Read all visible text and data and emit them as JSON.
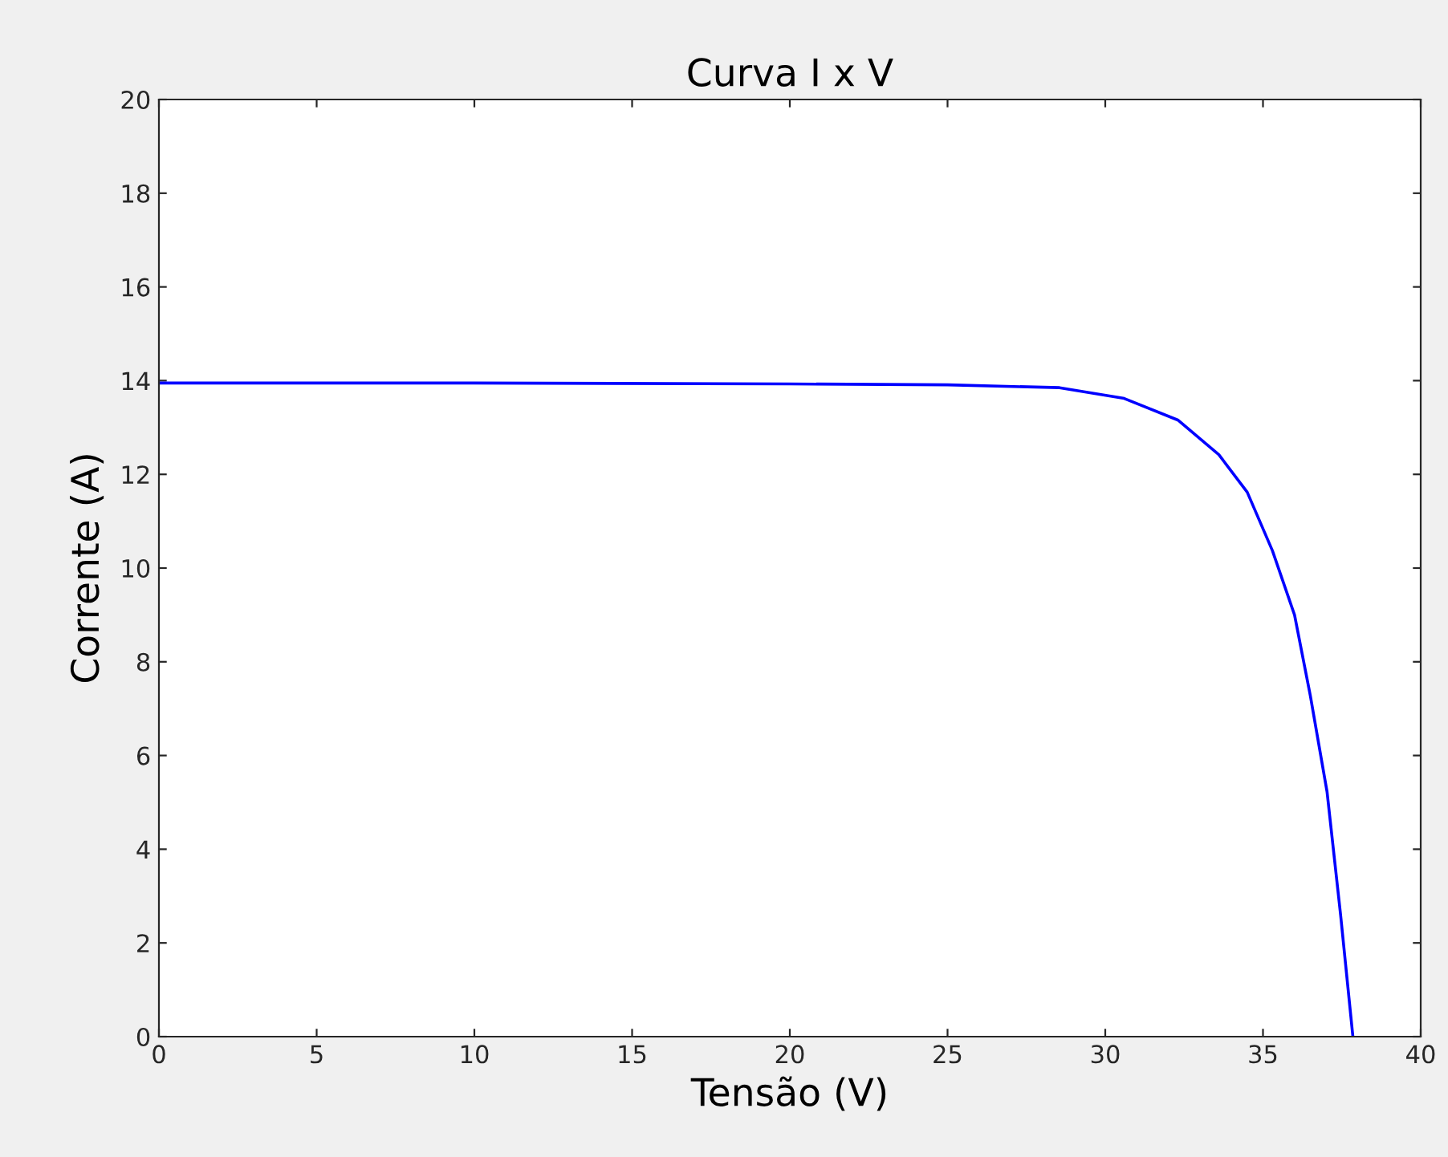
{
  "chart_data": {
    "type": "line",
    "title": "Curva I x V",
    "xlabel": "Tensão (V)",
    "ylabel": "Corrente (A)",
    "series": [
      {
        "color": "#0000ff",
        "x": [
          0,
          10,
          20,
          25,
          28.55,
          30.6,
          32.3,
          33.6,
          34.5,
          35.3,
          36.0,
          36.5,
          37.03,
          37.46,
          37.85
        ],
        "values": [
          13.95,
          13.95,
          13.93,
          13.91,
          13.85,
          13.62,
          13.16,
          12.42,
          11.62,
          10.37,
          9.0,
          7.28,
          5.23,
          2.6,
          0
        ]
      }
    ],
    "xlim": [
      0,
      40
    ],
    "xticks": [
      0,
      5,
      10,
      15,
      20,
      25,
      30,
      35,
      40
    ],
    "ylim": [
      0,
      20
    ],
    "yticks": [
      0,
      2,
      4,
      6,
      8,
      10,
      12,
      14,
      16,
      18,
      20
    ],
    "grid": false,
    "legend": false
  }
}
